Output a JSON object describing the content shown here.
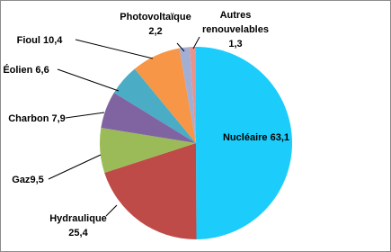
{
  "chart_data": {
    "type": "pie",
    "categories": [
      "Nucléaire",
      "Hydraulique",
      "Gaz",
      "Charbon",
      "Éolien",
      "Fioul",
      "Photovoltaïque",
      "Autres renouvelables"
    ],
    "values": [
      63.1,
      25.4,
      9.5,
      7.9,
      6.6,
      10.4,
      2.2,
      1.3
    ],
    "value_labels": [
      "63,1",
      "25,4",
      "9,5",
      "7,9",
      "6,6",
      "10,4",
      "2,2",
      "1,3"
    ],
    "colors": [
      "#1ccdfc",
      "#be4b48",
      "#9bbb59",
      "#8064a2",
      "#4bacc6",
      "#f79646",
      "#a3aed4",
      "#e8938c"
    ]
  }
}
